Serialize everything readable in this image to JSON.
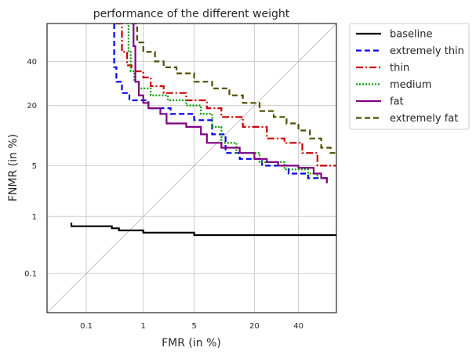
{
  "chart_data": {
    "type": "line",
    "title": "performance of the different weight",
    "xlabel": "FMR (in %)",
    "ylabel": "FNMR (in %)",
    "x_scale": "probit",
    "y_scale": "probit",
    "xlim": [
      0.015,
      60
    ],
    "ylim": [
      0.015,
      60
    ],
    "x_ticks": [
      0.1,
      1,
      5,
      20,
      40
    ],
    "x_tick_labels": [
      "0.1",
      "1",
      "5",
      "20",
      "40"
    ],
    "y_ticks": [
      0.1,
      1,
      5,
      20,
      40
    ],
    "y_tick_labels": [
      "0.1",
      "1",
      "5",
      "20",
      "40"
    ],
    "grid": true,
    "diagonal_reference": true,
    "legend_position": "outside-top-right",
    "series": [
      {
        "name": "baseline",
        "color": "#000000",
        "dash": "solid",
        "points": [
          [
            0.05,
            0.8
          ],
          [
            0.05,
            0.7
          ],
          [
            0.3,
            0.7
          ],
          [
            0.3,
            0.65
          ],
          [
            0.4,
            0.65
          ],
          [
            0.4,
            0.6
          ],
          [
            1,
            0.6
          ],
          [
            1,
            0.55
          ],
          [
            5,
            0.55
          ],
          [
            5,
            0.5
          ],
          [
            60,
            0.5
          ]
        ]
      },
      {
        "name": "extremely thin",
        "color": "#0000ee",
        "dash": "7,4",
        "points": [
          [
            0.33,
            60
          ],
          [
            0.33,
            37
          ],
          [
            0.36,
            37
          ],
          [
            0.36,
            30
          ],
          [
            0.45,
            30
          ],
          [
            0.45,
            25
          ],
          [
            0.6,
            25
          ],
          [
            0.6,
            22
          ],
          [
            1.2,
            22
          ],
          [
            1.2,
            19
          ],
          [
            2.5,
            19
          ],
          [
            2.5,
            17
          ],
          [
            5,
            17
          ],
          [
            5,
            15
          ],
          [
            8,
            15
          ],
          [
            8,
            11
          ],
          [
            11,
            11
          ],
          [
            11,
            7
          ],
          [
            15,
            7
          ],
          [
            15,
            6
          ],
          [
            23,
            6
          ],
          [
            23,
            5
          ],
          [
            35,
            5
          ],
          [
            35,
            4
          ],
          [
            45,
            4
          ],
          [
            45,
            3.5
          ],
          [
            55,
            3.5
          ],
          [
            55,
            3.2
          ]
        ]
      },
      {
        "name": "thin",
        "color": "#cc0000",
        "dash": "9,3,2,3",
        "points": [
          [
            0.35,
            60
          ],
          [
            0.45,
            60
          ],
          [
            0.45,
            45
          ],
          [
            0.55,
            45
          ],
          [
            0.55,
            38
          ],
          [
            0.65,
            38
          ],
          [
            0.65,
            37
          ],
          [
            0.75,
            37
          ],
          [
            0.75,
            35
          ],
          [
            1,
            35
          ],
          [
            1,
            32
          ],
          [
            1.3,
            32
          ],
          [
            1.3,
            28
          ],
          [
            2,
            28
          ],
          [
            2,
            25
          ],
          [
            4,
            25
          ],
          [
            4,
            22
          ],
          [
            7,
            22
          ],
          [
            7,
            19
          ],
          [
            10,
            19
          ],
          [
            10,
            16
          ],
          [
            16,
            16
          ],
          [
            16,
            13
          ],
          [
            25,
            13
          ],
          [
            25,
            10
          ],
          [
            33,
            10
          ],
          [
            33,
            9
          ],
          [
            42,
            9
          ],
          [
            42,
            7
          ],
          [
            50,
            7
          ],
          [
            50,
            5
          ],
          [
            60,
            5
          ]
        ]
      },
      {
        "name": "medium",
        "color": "#009900",
        "dash": "2,2",
        "points": [
          [
            0.55,
            60
          ],
          [
            0.58,
            60
          ],
          [
            0.58,
            45
          ],
          [
            0.63,
            45
          ],
          [
            0.63,
            35
          ],
          [
            0.72,
            35
          ],
          [
            0.72,
            30
          ],
          [
            0.85,
            30
          ],
          [
            0.85,
            27
          ],
          [
            1.3,
            27
          ],
          [
            1.3,
            24
          ],
          [
            2.3,
            24
          ],
          [
            2.3,
            22
          ],
          [
            4,
            22
          ],
          [
            4,
            20
          ],
          [
            6,
            20
          ],
          [
            6,
            17
          ],
          [
            8,
            17
          ],
          [
            8,
            13
          ],
          [
            10,
            13
          ],
          [
            10,
            9
          ],
          [
            14,
            9
          ],
          [
            14,
            7
          ],
          [
            22,
            7
          ],
          [
            22,
            5.5
          ],
          [
            33,
            5.5
          ],
          [
            33,
            4.5
          ],
          [
            45,
            4.5
          ],
          [
            45,
            4
          ],
          [
            50,
            4
          ],
          [
            50,
            3.5
          ],
          [
            55,
            3.5
          ],
          [
            55,
            3
          ]
        ]
      },
      {
        "name": "fat",
        "color": "#800080",
        "dash": "solid",
        "points": [
          [
            0.7,
            60
          ],
          [
            0.7,
            48
          ],
          [
            0.75,
            48
          ],
          [
            0.75,
            30
          ],
          [
            0.85,
            30
          ],
          [
            0.85,
            24
          ],
          [
            1,
            24
          ],
          [
            1,
            21
          ],
          [
            1.2,
            21
          ],
          [
            1.2,
            19
          ],
          [
            1.8,
            19
          ],
          [
            1.8,
            17
          ],
          [
            2.2,
            17
          ],
          [
            2.2,
            14
          ],
          [
            4,
            14
          ],
          [
            4,
            13
          ],
          [
            6,
            13
          ],
          [
            6,
            11
          ],
          [
            7,
            11
          ],
          [
            7,
            9
          ],
          [
            10,
            9
          ],
          [
            10,
            8
          ],
          [
            15,
            8
          ],
          [
            15,
            7
          ],
          [
            20,
            7
          ],
          [
            20,
            6
          ],
          [
            25,
            6
          ],
          [
            25,
            5.5
          ],
          [
            30,
            5.5
          ],
          [
            30,
            5
          ],
          [
            40,
            5
          ],
          [
            40,
            4.7
          ],
          [
            48,
            4.7
          ],
          [
            48,
            4
          ],
          [
            52,
            4
          ],
          [
            52,
            3.5
          ],
          [
            55,
            3.5
          ],
          [
            55,
            3
          ]
        ]
      },
      {
        "name": "extremely fat",
        "color": "#4d4d00",
        "dash": "7,4",
        "points": [
          [
            0.65,
            60
          ],
          [
            0.8,
            60
          ],
          [
            0.8,
            50
          ],
          [
            1,
            50
          ],
          [
            1,
            45
          ],
          [
            1.5,
            45
          ],
          [
            1.5,
            40
          ],
          [
            2,
            40
          ],
          [
            2,
            37
          ],
          [
            3,
            37
          ],
          [
            3,
            34
          ],
          [
            5,
            34
          ],
          [
            5,
            30
          ],
          [
            8,
            30
          ],
          [
            8,
            27
          ],
          [
            12,
            27
          ],
          [
            12,
            24
          ],
          [
            16,
            24
          ],
          [
            16,
            21
          ],
          [
            22,
            21
          ],
          [
            22,
            18
          ],
          [
            28,
            18
          ],
          [
            28,
            16
          ],
          [
            34,
            16
          ],
          [
            34,
            14
          ],
          [
            40,
            14
          ],
          [
            40,
            12
          ],
          [
            46,
            12
          ],
          [
            46,
            10
          ],
          [
            52,
            10
          ],
          [
            52,
            8
          ],
          [
            57,
            8
          ],
          [
            57,
            7
          ],
          [
            60,
            7
          ]
        ]
      }
    ]
  }
}
